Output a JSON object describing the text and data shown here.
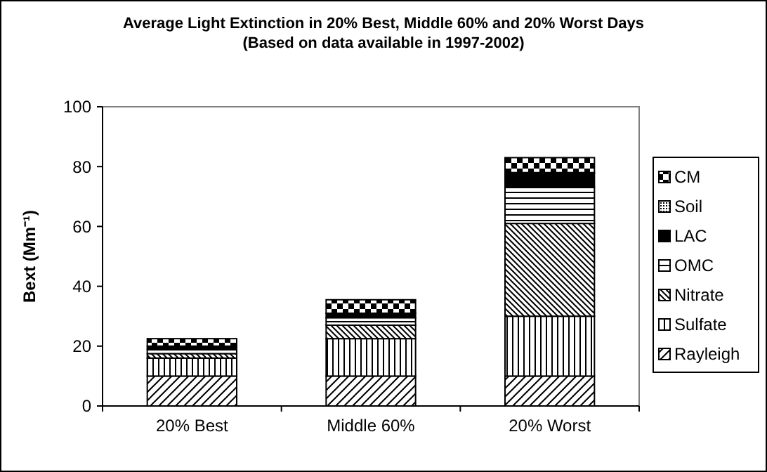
{
  "chart_data": {
    "type": "bar",
    "stacked": true,
    "title": "Average Light Extinction in 20% Best, Middle 60% and 20% Worst Days",
    "subtitle": "(Based on data available in 1997-2002)",
    "ylabel": "Bext (Mm⁻¹)",
    "categories": [
      "20% Best",
      "Middle 60%",
      "20% Worst"
    ],
    "ylim": [
      0,
      100
    ],
    "yticks": [
      0,
      20,
      40,
      60,
      80,
      100
    ],
    "grid": false,
    "legend": "right",
    "series": [
      {
        "name": "Rayleigh",
        "color": "#000000",
        "values": [
          10,
          10,
          10
        ]
      },
      {
        "name": "Sulfate",
        "color": "#000000",
        "values": [
          6,
          12.5,
          20
        ]
      },
      {
        "name": "Nitrate",
        "color": "#000000",
        "values": [
          1.5,
          4.5,
          31
        ]
      },
      {
        "name": "OMC",
        "color": "#000000",
        "values": [
          1.5,
          2.5,
          12
        ]
      },
      {
        "name": "LAC",
        "color": "#000000",
        "values": [
          1,
          1.5,
          5
        ]
      },
      {
        "name": "Soil",
        "color": "#000000",
        "values": [
          null,
          null,
          null
        ]
      },
      {
        "name": "CM",
        "color": "#000000",
        "values": [
          2.5,
          4.5,
          5
        ]
      }
    ]
  }
}
